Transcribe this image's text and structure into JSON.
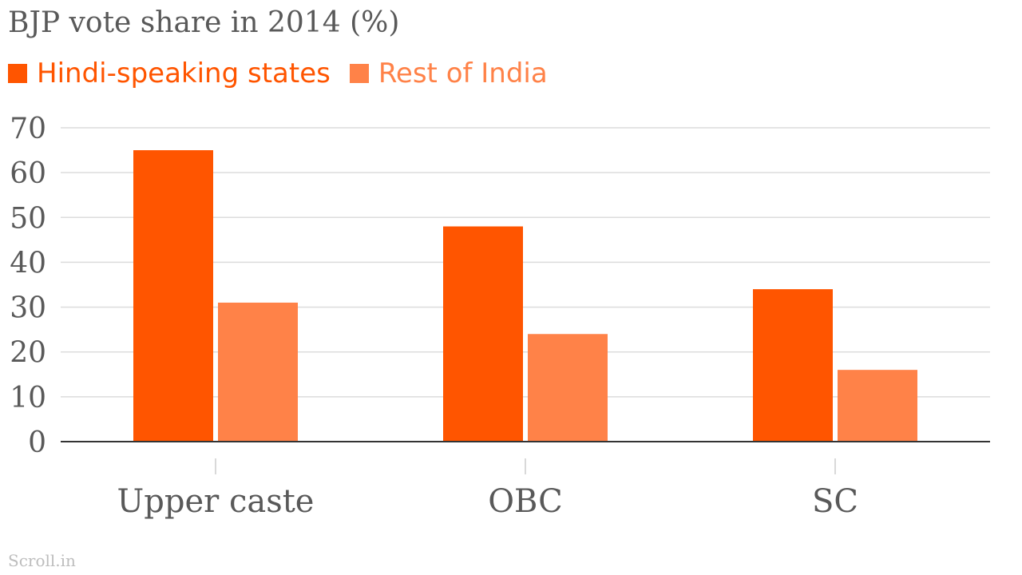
{
  "chart_data": {
    "type": "bar",
    "title": "BJP vote share in 2014 (%)",
    "categories": [
      "Upper caste",
      "OBC",
      "SC"
    ],
    "series": [
      {
        "name": "Hindi-speaking states",
        "values": [
          65,
          48,
          34
        ],
        "color": "#ff5500"
      },
      {
        "name": "Rest of India",
        "values": [
          31,
          24,
          16
        ],
        "color": "#ff8248"
      }
    ],
    "ylim": [
      0,
      70
    ],
    "yticks": [
      0,
      10,
      20,
      30,
      40,
      50,
      60,
      70
    ],
    "grid": true,
    "legend_position": "top-left",
    "xlabel": "",
    "ylabel": ""
  },
  "source": "Scroll.in"
}
